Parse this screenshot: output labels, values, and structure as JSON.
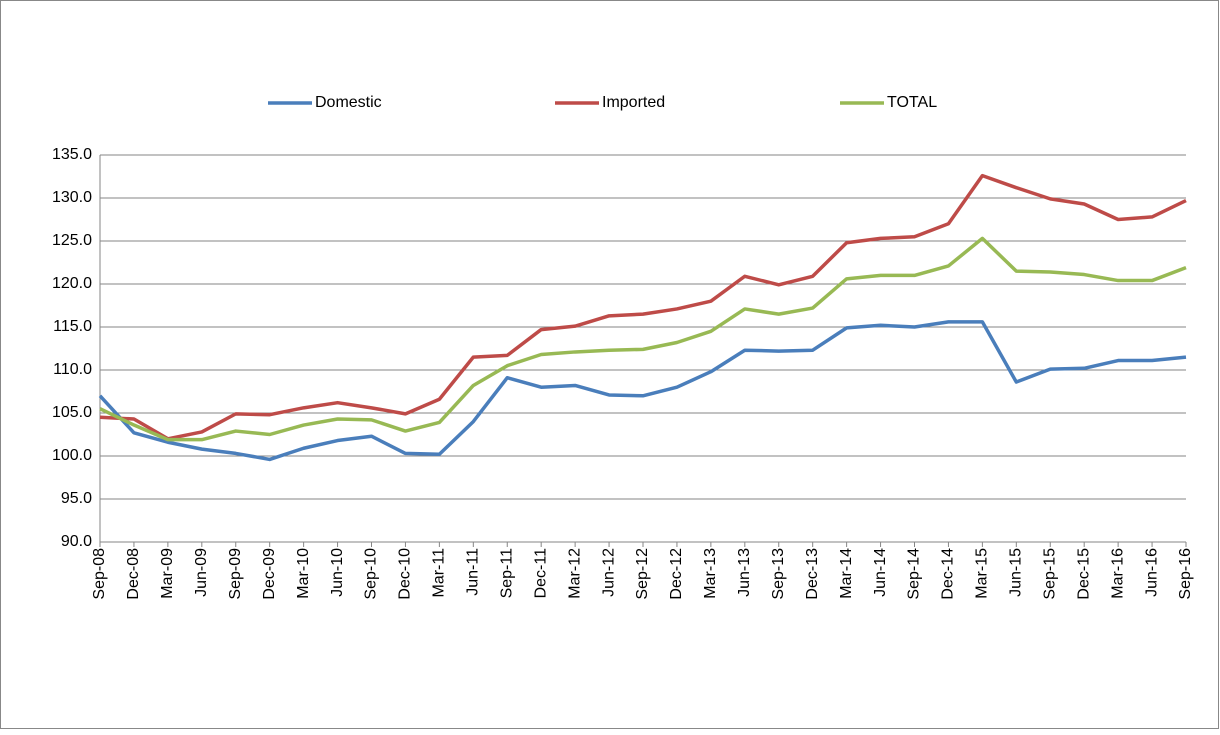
{
  "chart_data": {
    "type": "line",
    "categories": [
      "Sep-08",
      "Dec-08",
      "Mar-09",
      "Jun-09",
      "Sep-09",
      "Dec-09",
      "Mar-10",
      "Jun-10",
      "Sep-10",
      "Dec-10",
      "Mar-11",
      "Jun-11",
      "Sep-11",
      "Dec-11",
      "Mar-12",
      "Jun-12",
      "Sep-12",
      "Dec-12",
      "Mar-13",
      "Jun-13",
      "Sep-13",
      "Dec-13",
      "Mar-14",
      "Jun-14",
      "Sep-14",
      "Dec-14",
      "Mar-15",
      "Jun-15",
      "Sep-15",
      "Dec-15",
      "Mar-16",
      "Jun-16",
      "Sep-16"
    ],
    "series": [
      {
        "name": "Domestic",
        "color": "#4a7ebb",
        "values": [
          107.0,
          102.7,
          101.6,
          100.8,
          100.3,
          99.6,
          100.9,
          101.8,
          102.3,
          100.3,
          100.2,
          104.0,
          109.1,
          108.0,
          108.2,
          107.1,
          107.0,
          108.0,
          109.8,
          112.3,
          112.2,
          112.3,
          114.9,
          115.2,
          115.0,
          115.6,
          115.6,
          108.6,
          110.1,
          110.2,
          111.1,
          111.1,
          111.5
        ]
      },
      {
        "name": "Imported",
        "color": "#be4b48",
        "values": [
          104.5,
          104.3,
          102.0,
          102.8,
          104.9,
          104.8,
          105.6,
          106.2,
          105.6,
          104.9,
          106.6,
          111.5,
          111.7,
          114.7,
          115.1,
          116.3,
          116.5,
          117.1,
          118.0,
          120.9,
          119.9,
          120.9,
          124.8,
          125.3,
          125.5,
          127.0,
          132.6,
          131.2,
          129.9,
          129.3,
          127.5,
          127.8,
          129.7
        ]
      },
      {
        "name": "TOTAL",
        "color": "#98b954",
        "values": [
          105.5,
          103.6,
          101.9,
          101.9,
          102.9,
          102.5,
          103.6,
          104.3,
          104.2,
          102.9,
          103.9,
          108.2,
          110.5,
          111.8,
          112.1,
          112.3,
          112.4,
          113.2,
          114.5,
          117.1,
          116.5,
          117.2,
          120.6,
          121.0,
          121.0,
          122.1,
          125.3,
          121.5,
          121.4,
          121.1,
          120.4,
          120.4,
          121.9
        ]
      }
    ],
    "ylim": [
      90,
      135
    ],
    "yticks": [
      {
        "value": 90,
        "label": "90.0"
      },
      {
        "value": 95,
        "label": "95.0"
      },
      {
        "value": 100,
        "label": "100.0"
      },
      {
        "value": 105,
        "label": "105.0"
      },
      {
        "value": 110,
        "label": "110.0"
      },
      {
        "value": 115,
        "label": "115.0"
      },
      {
        "value": 120,
        "label": "120.0"
      },
      {
        "value": 125,
        "label": "125.0"
      },
      {
        "value": 130,
        "label": "130.0"
      },
      {
        "value": 135,
        "label": "135.0"
      }
    ],
    "grid": true,
    "legend": "top"
  }
}
